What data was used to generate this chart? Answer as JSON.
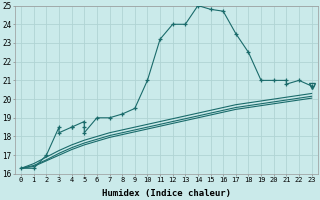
{
  "xlabel": "Humidex (Indice chaleur)",
  "xlim": [
    -0.5,
    23.5
  ],
  "ylim": [
    16,
    25
  ],
  "xticks": [
    0,
    1,
    2,
    3,
    4,
    5,
    6,
    7,
    8,
    9,
    10,
    11,
    12,
    13,
    14,
    15,
    16,
    17,
    18,
    19,
    20,
    21,
    22,
    23
  ],
  "yticks": [
    16,
    17,
    18,
    19,
    20,
    21,
    22,
    23,
    24,
    25
  ],
  "bg_color": "#caeaea",
  "grid_color": "#b0d4d4",
  "line_color": "#1a6b6b",
  "main_x": [
    0,
    1,
    2,
    3,
    3,
    4,
    4,
    5,
    5,
    5,
    6,
    7,
    8,
    9,
    10,
    11,
    12,
    13,
    14,
    15,
    16,
    17,
    18,
    19,
    20,
    21,
    21,
    22,
    23
  ],
  "main_y": [
    16.3,
    16.3,
    17.0,
    18.5,
    18.2,
    18.5,
    18.5,
    18.8,
    18.5,
    18.2,
    19.0,
    19.0,
    19.2,
    19.5,
    21.0,
    23.2,
    24.0,
    24.0,
    25.0,
    24.8,
    24.7,
    23.5,
    22.5,
    21.0,
    21.0,
    21.0,
    20.8,
    21.0,
    20.7
  ],
  "smooth_x": [
    0,
    1,
    2,
    3,
    4,
    5,
    6,
    7,
    8,
    9,
    10,
    11,
    12,
    13,
    14,
    15,
    16,
    17,
    18,
    19,
    20,
    21,
    22,
    23
  ],
  "smooth_y1": [
    16.3,
    16.4,
    16.7,
    17.0,
    17.3,
    17.55,
    17.75,
    17.95,
    18.1,
    18.25,
    18.4,
    18.55,
    18.7,
    18.85,
    19.0,
    19.15,
    19.3,
    19.45,
    19.55,
    19.65,
    19.75,
    19.85,
    19.95,
    20.05
  ],
  "smooth_y2": [
    16.3,
    16.45,
    16.75,
    17.1,
    17.4,
    17.65,
    17.85,
    18.05,
    18.2,
    18.35,
    18.5,
    18.65,
    18.8,
    18.95,
    19.1,
    19.25,
    19.4,
    19.55,
    19.65,
    19.75,
    19.85,
    19.95,
    20.05,
    20.15
  ],
  "smooth_y3": [
    16.3,
    16.55,
    16.9,
    17.25,
    17.55,
    17.8,
    18.0,
    18.2,
    18.35,
    18.5,
    18.65,
    18.8,
    18.95,
    19.1,
    19.25,
    19.4,
    19.55,
    19.7,
    19.8,
    19.9,
    20.0,
    20.1,
    20.2,
    20.3
  ],
  "tri_x": [
    23
  ],
  "tri_y": [
    20.7
  ]
}
